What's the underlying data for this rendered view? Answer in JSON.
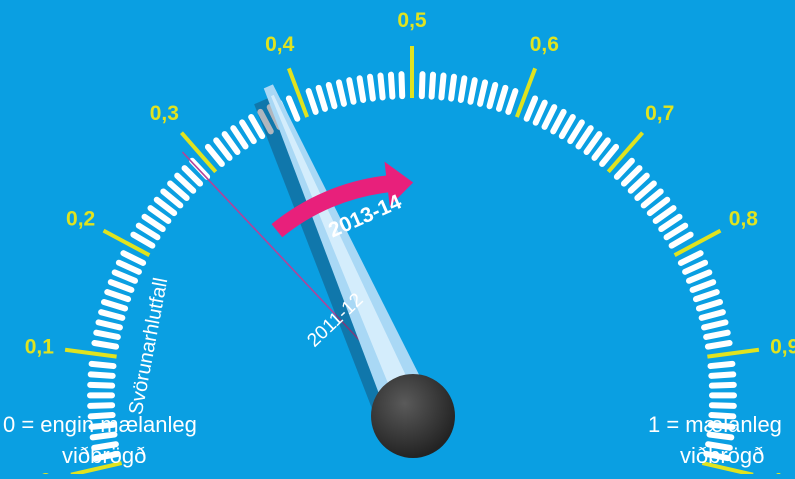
{
  "gauge": {
    "axis_label": "Svörunarhlutfall",
    "min": 0,
    "max": 1,
    "major_ticks": [
      "0",
      "0,1",
      "0,2",
      "0,3",
      "0,4",
      "0,5",
      "0,6",
      "0,7",
      "0,8",
      "0,9",
      "1"
    ],
    "previous": {
      "label": "2011-12",
      "value": 0.29
    },
    "current": {
      "label": "2013-14",
      "value": 0.385
    }
  },
  "captions": {
    "left_line1": "0 = engin mælanleg",
    "left_line2": "viðbrögð",
    "right_line1": "1 = mælanleg",
    "right_line2": "viðbrögð"
  },
  "colors": {
    "background": "#0a9fe2",
    "tick_major": "#e0e31f",
    "tick_minor": "#ffffff",
    "previous_line": "#b0449a",
    "arrow": "#e8207b",
    "needle": "#a9d8f5",
    "hub": "#333333"
  }
}
